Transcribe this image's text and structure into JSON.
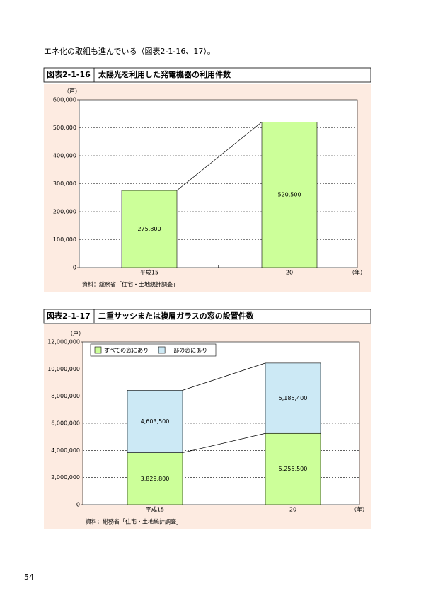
{
  "intro": "エネ化の取組も進んでいる（図表2-1-16、17）。",
  "page_number": "54",
  "chart_data": [
    {
      "type": "bar",
      "figure_label": "図表2-1-16",
      "title": "太陽光を利用した発電機器の利用件数",
      "y_unit": "（戸）",
      "x_unit": "（年）",
      "categories": [
        "平成15",
        "20"
      ],
      "values": [
        275800,
        520500
      ],
      "value_labels": [
        "275,800",
        "520,500"
      ],
      "color": "#ccff99",
      "ylim": [
        0,
        600000
      ],
      "yticks": [
        0,
        {
          "value": 100000,
          "label": "100,000"
        },
        {
          "value": 200000,
          "label": "200,000"
        },
        {
          "value": 300000,
          "label": "300,000"
        },
        {
          "value": 400000,
          "label": "400,000"
        },
        {
          "value": 500000,
          "label": "500,000"
        },
        {
          "value": 600000,
          "label": "600,000"
        }
      ],
      "grid": true,
      "connector_lines": true,
      "source": "資料：総務省「住宅・土地統計調査」"
    },
    {
      "type": "stacked_bar",
      "figure_label": "図表2-1-17",
      "title": "二重サッシまたは複層ガラスの窓の設置件数",
      "y_unit": "（戸）",
      "x_unit": "（年）",
      "categories": [
        "平成15",
        "20"
      ],
      "series": [
        {
          "name": "すべての窓にあり",
          "color": "#ccff99",
          "values": [
            3829800,
            5255500
          ],
          "value_labels": [
            "3,829,800",
            "5,255,500"
          ]
        },
        {
          "name": "一部の窓にあり",
          "color": "#cce9f5",
          "values": [
            4603500,
            5185400
          ],
          "value_labels": [
            "4,603,500",
            "5,185,400"
          ]
        }
      ],
      "ylim": [
        0,
        12000000
      ],
      "yticks": [
        0,
        {
          "value": 2000000,
          "label": "2,000,000"
        },
        {
          "value": 4000000,
          "label": "4,000,000"
        },
        {
          "value": 6000000,
          "label": "6,000,000"
        },
        {
          "value": 8000000,
          "label": "8,000,000"
        },
        {
          "value": 10000000,
          "label": "10,000,000"
        },
        {
          "value": 12000000,
          "label": "12,000,000"
        }
      ],
      "grid": true,
      "connector_lines": true,
      "legend": "top-left",
      "source": "資料：総務省「住宅・土地統計調査」"
    }
  ]
}
